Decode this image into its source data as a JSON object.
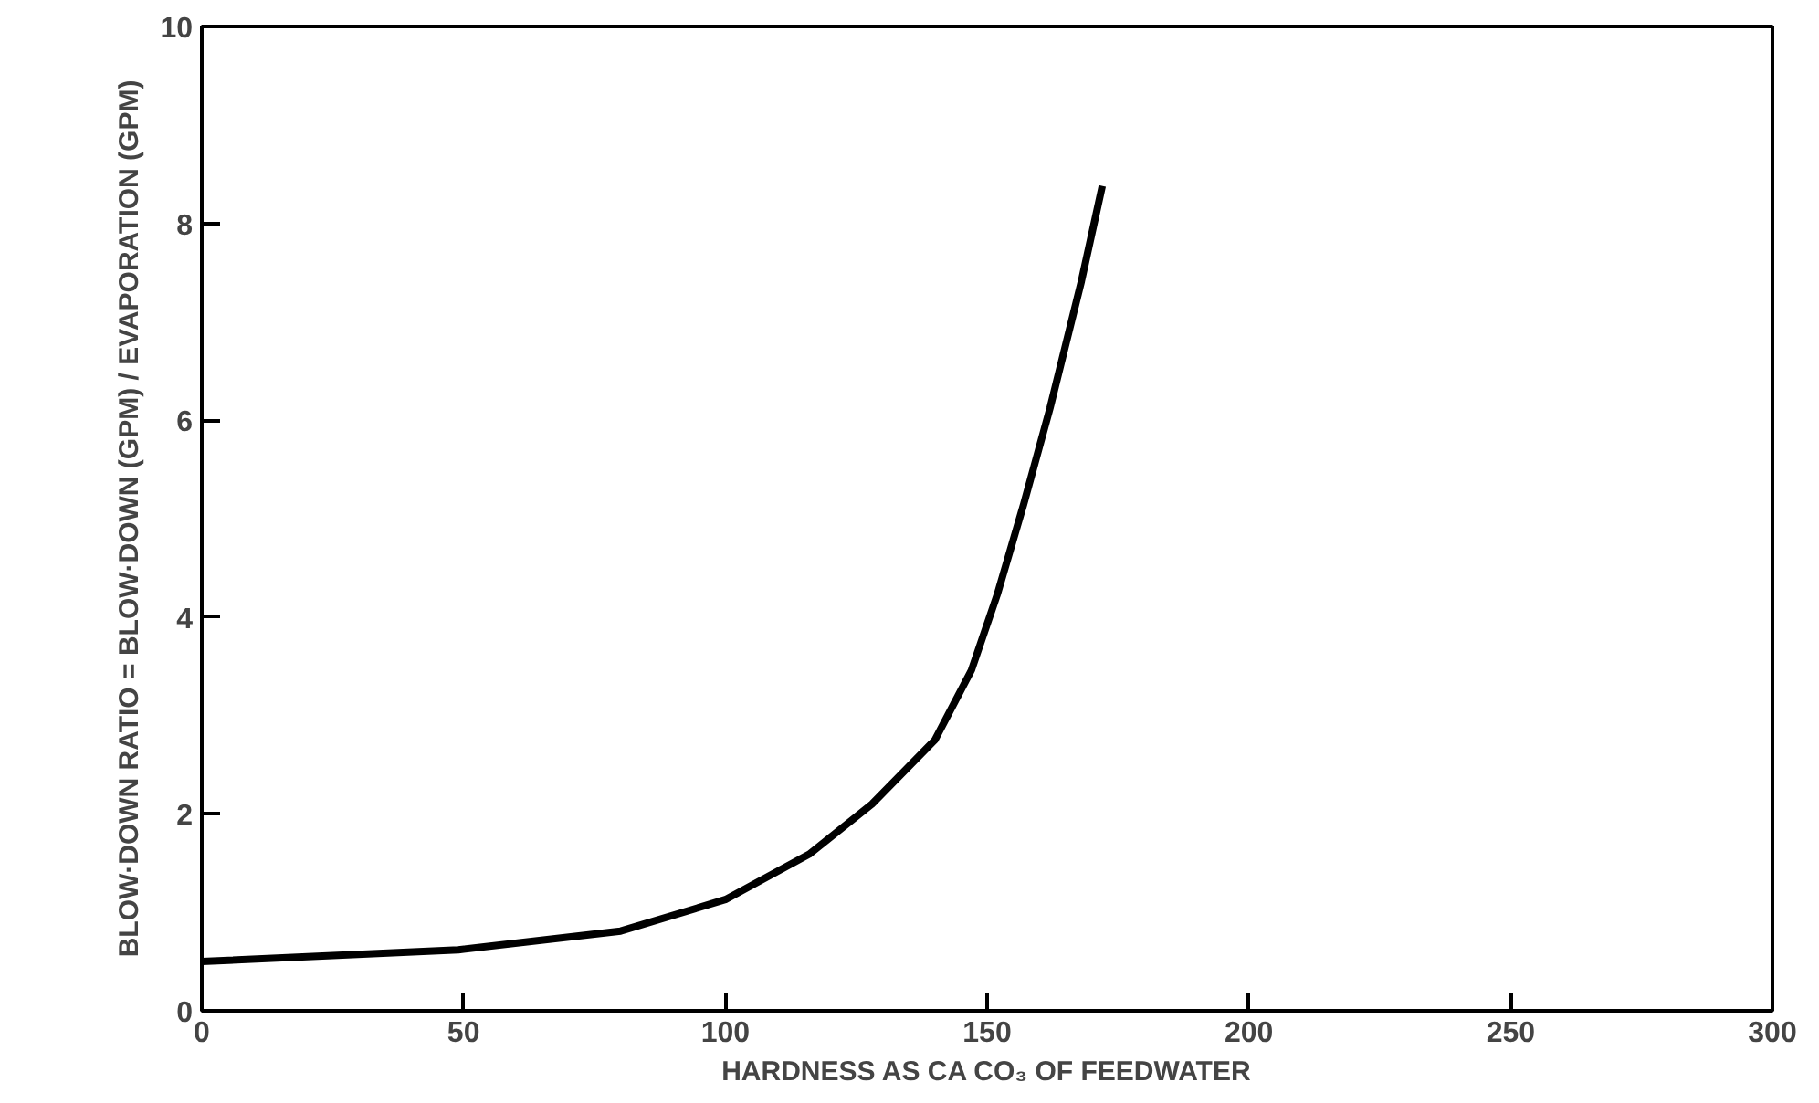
{
  "chart_data": {
    "type": "line",
    "xlabel": "HARDNESS AS CA CO₃ OF FEEDWATER",
    "ylabel": "BLOW·DOWN RATIO = BLOW·DOWN (GPM) / EVAPORATION (GPM)",
    "x": [
      0,
      49,
      80,
      100,
      116,
      128,
      140,
      147,
      152,
      157,
      162,
      168,
      172
    ],
    "series": [
      {
        "color": "#000000",
        "values": [
          0.5,
          0.62,
          0.81,
          1.13,
          1.59,
          2.1,
          2.75,
          3.46,
          4.24,
          5.15,
          6.12,
          7.41,
          8.38
        ]
      }
    ],
    "xlim": [
      0,
      300
    ],
    "xticks": [
      0,
      50,
      100,
      150,
      200,
      250,
      300
    ],
    "ylim": [
      0,
      10
    ],
    "yticks": [
      0,
      2,
      4,
      6,
      8,
      10
    ],
    "grid": false,
    "line_style": "solid",
    "marker": "none"
  }
}
